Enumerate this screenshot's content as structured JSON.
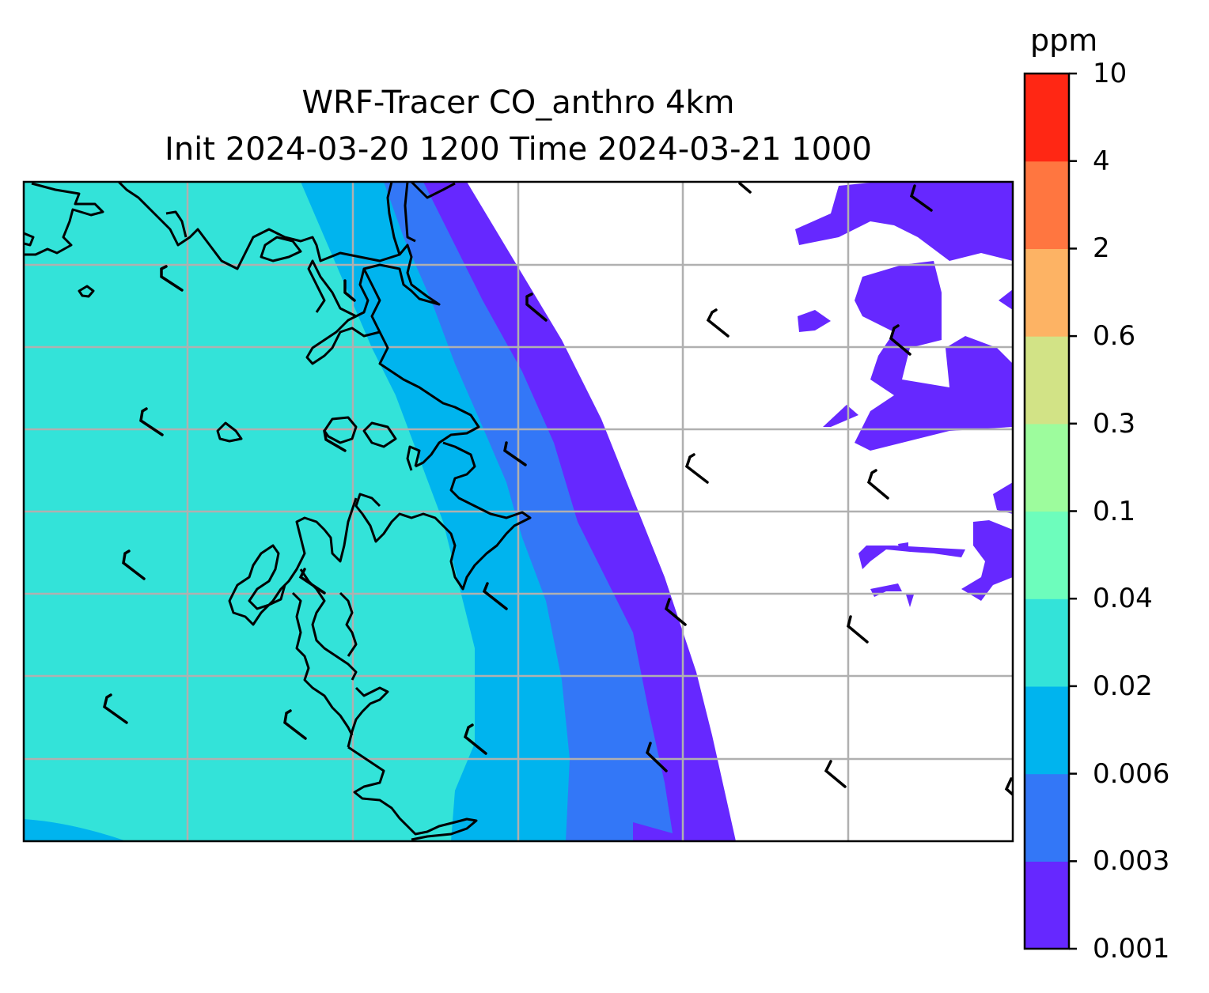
{
  "title_line1": "WRF-Tracer CO_anthro 4km",
  "title_line2": "Init 2024-03-20 1200 Time 2024-03-21 1000",
  "colorbar": {
    "unit": "ppm",
    "levels": [
      "0.001",
      "0.003",
      "0.006",
      "0.02",
      "0.04",
      "0.1",
      "0.3",
      "0.6",
      "2",
      "4",
      "10"
    ],
    "colors": [
      "#6628ff",
      "#3377f7",
      "#00b4ee",
      "#33e3d9",
      "#6dfdbc",
      "#9dfc9d",
      "#d2e386",
      "#fdb364",
      "#ff7640",
      "#ff2714"
    ]
  },
  "map": {
    "layers": [
      "tracer-fill",
      "coastline",
      "gridlines",
      "wind-barbs"
    ],
    "grid": true
  }
}
